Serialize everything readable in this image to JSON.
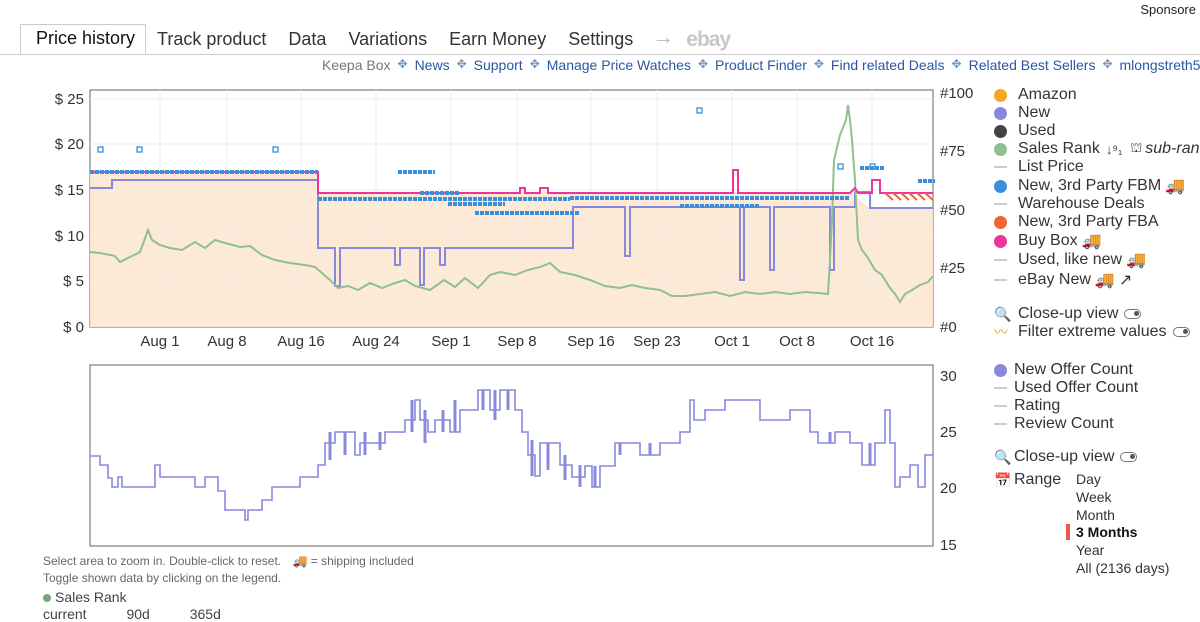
{
  "header": {
    "sponsored": "Sponsore",
    "tabs": [
      {
        "label": "Price history",
        "active": true
      },
      {
        "label": "Track product"
      },
      {
        "label": "Data"
      },
      {
        "label": "Variations"
      },
      {
        "label": "Earn Money"
      },
      {
        "label": "Settings"
      }
    ],
    "arrow": "→",
    "ebay": "ebay"
  },
  "links": {
    "keepa_box": "Keepa Box",
    "items": [
      "News",
      "Support",
      "Manage Price Watches",
      "Product Finder",
      "Find related Deals",
      "Related Best Sellers",
      "mlongstreth5"
    ]
  },
  "legend": {
    "amazon": "Amazon",
    "new": "New",
    "used": "Used",
    "sales_rank": "Sales Rank",
    "sub_rank": "sub-rank",
    "list_price": "List Price",
    "new_fbm": "New, 3rd Party FBM",
    "warehouse": "Warehouse Deals",
    "new_fba": "New, 3rd Party FBA",
    "buy_box": "Buy Box",
    "used_like_new": "Used, like new",
    "ebay_new": "eBay New",
    "closeup": "Close-up view",
    "filter": "Filter extreme values"
  },
  "legend2": {
    "new_offer_count": "New Offer Count",
    "used_offer_count": "Used Offer Count",
    "rating": "Rating",
    "review_count": "Review Count",
    "closeup": "Close-up view",
    "range_label": "Range",
    "range_options": [
      "Day",
      "Week",
      "Month",
      "3 Months",
      "Year",
      "All (2136 days)"
    ],
    "range_selected": "3 Months"
  },
  "notes": {
    "zoom": "Select area to zoom in. Double-click to reset.",
    "shipping": "= shipping included",
    "toggle": "Toggle shown data by clicking on the legend."
  },
  "sales_rank_summary": {
    "label": "Sales Rank",
    "columns": [
      "current",
      "90d",
      "365d"
    ]
  },
  "colors": {
    "amazon": "#f5a623",
    "new": "#8888dd",
    "used": "#444444",
    "sales_rank": "#8fc08f",
    "new_fbm": "#3a8fdd",
    "new_fba": "#ee6633",
    "buy_box": "#ee3399",
    "list_price": "#cccccc"
  },
  "chart_data": [
    {
      "type": "line",
      "x_ticks": [
        "Aug 1",
        "Aug 8",
        "Aug 16",
        "Aug 24",
        "Sep 1",
        "Sep 8",
        "Sep 16",
        "Sep 23",
        "Oct 1",
        "Oct 8",
        "Oct 16"
      ],
      "y_left_ticks": [
        "$ 0",
        "$ 5",
        "$ 10",
        "$ 15",
        "$ 20",
        "$ 25"
      ],
      "y_right_ticks": [
        "#0",
        "#25",
        "#50",
        "#75",
        "#100"
      ],
      "ylim": [
        0,
        25
      ],
      "series": [
        {
          "name": "New",
          "values": [
            16,
            16,
            9,
            7,
            9,
            9,
            7,
            7,
            9,
            9,
            13
          ]
        },
        {
          "name": "Sales Rank",
          "values": [
            25,
            25,
            23,
            19,
            21,
            19,
            20,
            18,
            18,
            18,
            100
          ]
        },
        {
          "name": "Buy Box",
          "values": [
            17,
            17,
            17,
            14.5,
            14.5,
            14.5,
            14.5,
            14.5,
            14.5,
            14.5,
            14.5
          ]
        },
        {
          "name": "New, 3rd Party FBM",
          "values": [
            17,
            17,
            17,
            14,
            14,
            13.5,
            13,
            14,
            14,
            14,
            14
          ]
        }
      ]
    },
    {
      "type": "line",
      "x_ticks": [
        "Aug 1",
        "Aug 8",
        "Aug 16",
        "Aug 24",
        "Sep 1",
        "Sep 8",
        "Sep 16",
        "Sep 23",
        "Oct 1",
        "Oct 8",
        "Oct 16"
      ],
      "y_ticks": [
        "15",
        "20",
        "25",
        "30"
      ],
      "ylim": [
        15,
        30
      ],
      "series": [
        {
          "name": "New Offer Count",
          "values": [
            22,
            21,
            20,
            19,
            22,
            25,
            27,
            28,
            23,
            22,
            24,
            26,
            25,
            24,
            22
          ]
        }
      ]
    }
  ]
}
